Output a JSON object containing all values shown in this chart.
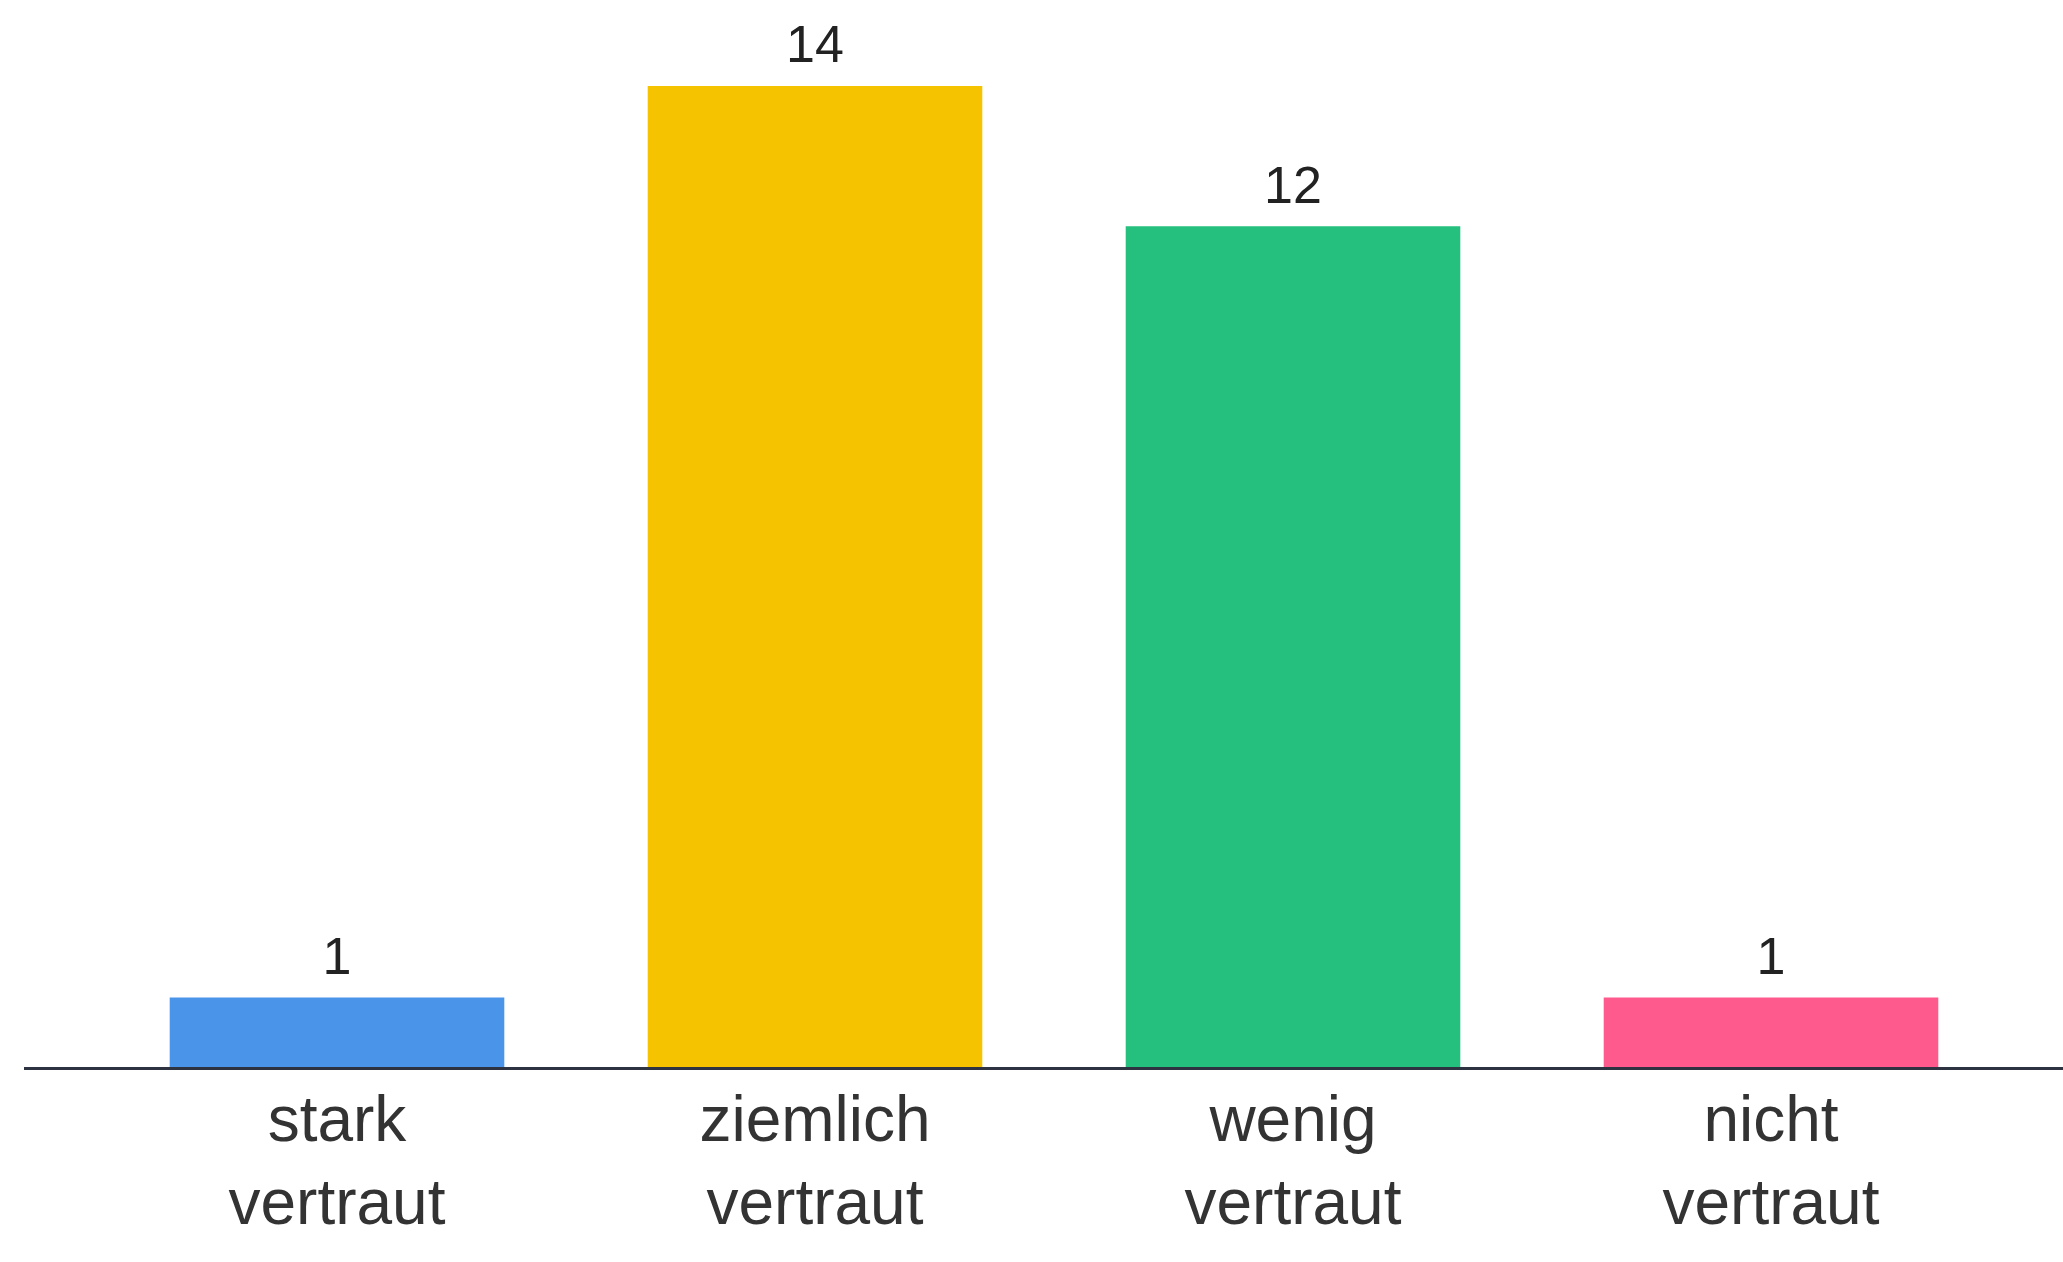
{
  "chart_data": {
    "type": "bar",
    "categories": [
      "stark vertraut",
      "ziemlich vertraut",
      "wenig vertraut",
      "nicht vertraut"
    ],
    "values": [
      1,
      14,
      12,
      1
    ],
    "colors": [
      "#4a94ea",
      "#f6c300",
      "#25bf7e",
      "#ff5a8e"
    ],
    "data_labels": true,
    "grid": false,
    "legend": false
  }
}
